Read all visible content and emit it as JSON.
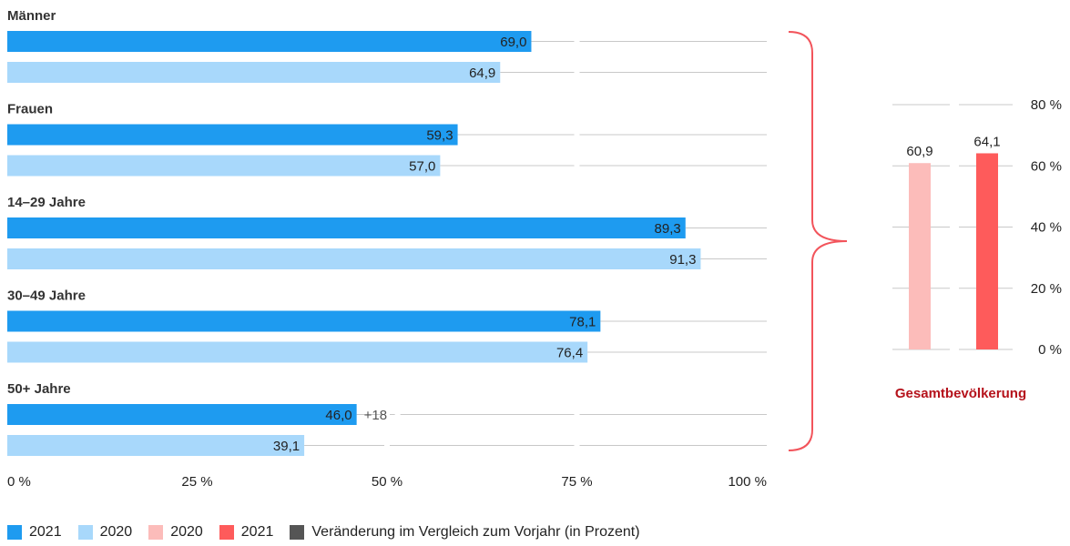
{
  "chart_data": [
    {
      "type": "bar",
      "orientation": "horizontal",
      "categories": [
        "Männer",
        "Frauen",
        "14–29 Jahre",
        "30–49 Jahre",
        "50+ Jahre"
      ],
      "series": [
        {
          "name": "2021",
          "values": [
            69.0,
            59.3,
            89.3,
            78.1,
            46.0
          ],
          "labels": [
            "69,0",
            "59,3",
            "89,3",
            "78,1",
            "46,0"
          ],
          "color": "#1e9bf0"
        },
        {
          "name": "2020",
          "values": [
            64.9,
            57.0,
            91.3,
            76.4,
            39.1
          ],
          "labels": [
            "64,9",
            "57,0",
            "91,3",
            "76,4",
            "39,1"
          ],
          "color": "#a8d8fb"
        }
      ],
      "annotations": [
        {
          "category": "50+ Jahre",
          "series": "2021",
          "text": "+18"
        }
      ],
      "xlim": [
        0,
        100
      ],
      "xticks": [
        "0 %",
        "25 %",
        "50 %",
        "75 %",
        "100 %"
      ],
      "grid": true
    },
    {
      "type": "bar",
      "orientation": "vertical",
      "title": "Gesamtbevölkerung",
      "categories": [
        "2020",
        "2021"
      ],
      "values": [
        60.9,
        64.1
      ],
      "labels": [
        "60,9",
        "64,1"
      ],
      "colors": [
        "#fcbcba",
        "#fe5b5b"
      ],
      "ylim": [
        0,
        80
      ],
      "yticks": [
        "0 %",
        "20 %",
        "40 %",
        "60 %",
        "80 %"
      ],
      "grid": true,
      "axis_position": "right"
    }
  ],
  "legend": [
    {
      "label": "2021",
      "color": "#1e9bf0"
    },
    {
      "label": "2020",
      "color": "#a8d8fb"
    },
    {
      "label": "2020",
      "color": "#fcbcba"
    },
    {
      "label": "2021",
      "color": "#fe5b5b"
    },
    {
      "label": "Veränderung im Vergleich zum Vorjahr (in Prozent)",
      "color": "#555555"
    }
  ],
  "colors": {
    "brace": "#f2545b",
    "grid": "#c8c8c8"
  }
}
